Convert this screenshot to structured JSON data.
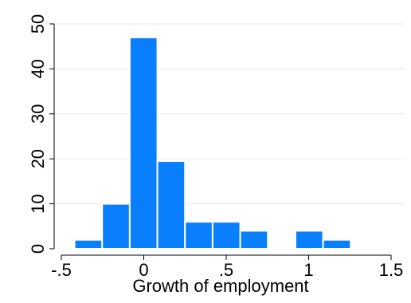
{
  "chart_data": {
    "type": "bar",
    "title": "",
    "xlabel": "Growth of employment",
    "ylabel": "",
    "xlim": [
      -0.55,
      1.55
    ],
    "ylim": [
      0,
      52
    ],
    "grid": true,
    "bin_width": 0.1675,
    "bins": [
      {
        "start": -0.42,
        "end": -0.2525,
        "value": 2
      },
      {
        "start": -0.2525,
        "end": -0.085,
        "value": 10
      },
      {
        "start": -0.085,
        "end": 0.0825,
        "value": 47
      },
      {
        "start": 0.0825,
        "end": 0.25,
        "value": 19.5
      },
      {
        "start": 0.25,
        "end": 0.4175,
        "value": 6
      },
      {
        "start": 0.4175,
        "end": 0.585,
        "value": 6
      },
      {
        "start": 0.585,
        "end": 0.7525,
        "value": 4
      },
      {
        "start": 0.7525,
        "end": 0.92,
        "value": 0
      },
      {
        "start": 0.92,
        "end": 1.0875,
        "value": 4
      },
      {
        "start": 1.0875,
        "end": 1.255,
        "value": 2
      }
    ],
    "x_ticks": [
      {
        "value": -0.5,
        "label": "-.5"
      },
      {
        "value": 0,
        "label": "0"
      },
      {
        "value": 0.5,
        "label": ".5"
      },
      {
        "value": 1,
        "label": "1"
      },
      {
        "value": 1.5,
        "label": "1.5"
      }
    ],
    "y_ticks": [
      {
        "value": 0,
        "label": "0"
      },
      {
        "value": 10,
        "label": "10"
      },
      {
        "value": 20,
        "label": "20"
      },
      {
        "value": 30,
        "label": "30"
      },
      {
        "value": 40,
        "label": "40"
      },
      {
        "value": 50,
        "label": "50"
      }
    ],
    "colors": {
      "bar_fill": "#0a7ffd",
      "bar_stroke": "#ffffff",
      "grid": "#eaeaea",
      "axis": "#000000"
    }
  }
}
